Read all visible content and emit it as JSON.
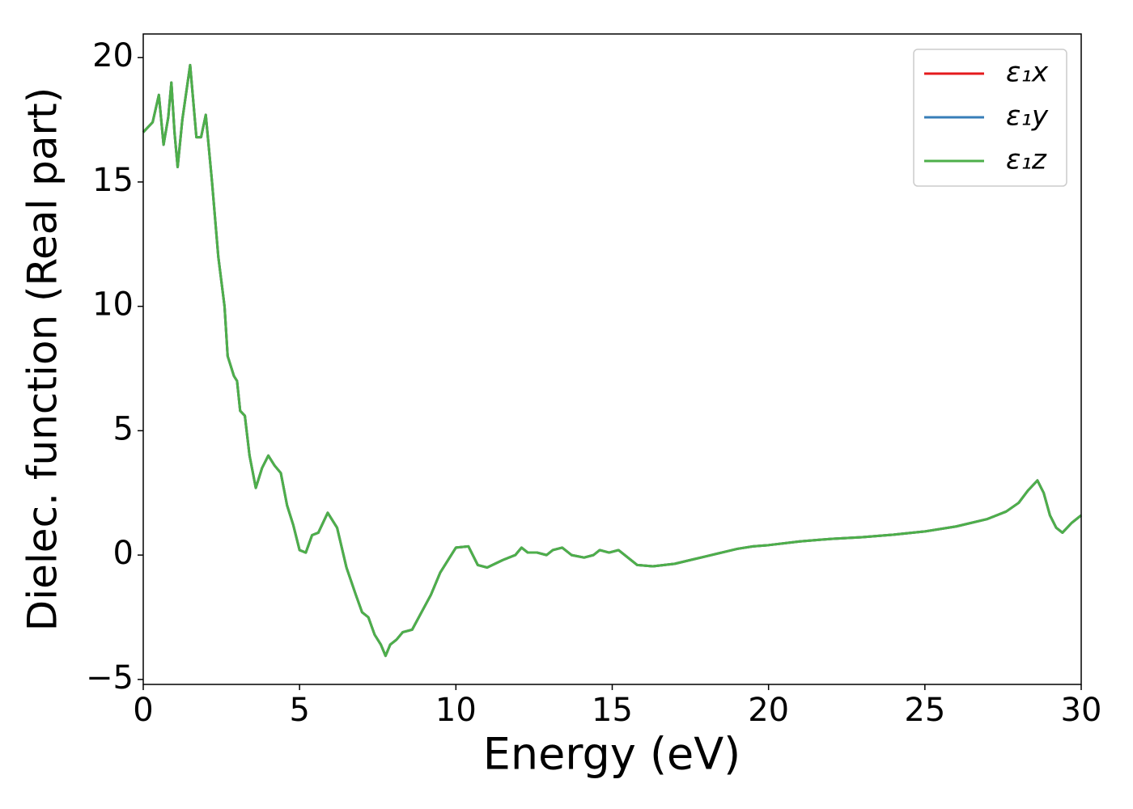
{
  "chart_data": {
    "type": "line",
    "xlabel": "Energy (eV)",
    "ylabel": "Dielec. function (Real part)",
    "x": [
      0,
      0.3,
      0.5,
      0.65,
      0.8,
      0.9,
      1.0,
      1.1,
      1.25,
      1.5,
      1.7,
      1.85,
      2.0,
      2.2,
      2.4,
      2.6,
      2.7,
      2.9,
      3.0,
      3.1,
      3.25,
      3.4,
      3.6,
      3.8,
      4.0,
      4.2,
      4.4,
      4.6,
      4.8,
      5.0,
      5.2,
      5.4,
      5.6,
      5.9,
      6.2,
      6.5,
      6.8,
      7.0,
      7.2,
      7.4,
      7.6,
      7.75,
      7.9,
      8.1,
      8.3,
      8.6,
      8.9,
      9.2,
      9.5,
      9.8,
      10.0,
      10.4,
      10.7,
      11.0,
      11.5,
      11.9,
      12.1,
      12.3,
      12.6,
      12.9,
      13.1,
      13.4,
      13.7,
      14.1,
      14.4,
      14.6,
      14.9,
      15.2,
      15.5,
      15.8,
      16.3,
      17.0,
      17.5,
      18.0,
      18.5,
      19.0,
      19.5,
      20.0,
      21.0,
      22.0,
      23.0,
      24.0,
      25.0,
      26.0,
      27.0,
      27.6,
      28.0,
      28.3,
      28.6,
      28.8,
      29.0,
      29.2,
      29.4,
      29.7,
      30.0
    ],
    "series": [
      {
        "name": "ε₁x",
        "color": "#e41a1c",
        "values": [
          17.0,
          17.4,
          18.5,
          16.5,
          17.6,
          19.0,
          17.0,
          15.6,
          17.5,
          19.7,
          16.8,
          16.8,
          17.7,
          15.0,
          12.0,
          10.0,
          8.0,
          7.2,
          7.0,
          5.8,
          5.6,
          4.0,
          2.7,
          3.5,
          4.0,
          3.6,
          3.3,
          2.0,
          1.2,
          0.2,
          0.1,
          0.8,
          0.9,
          1.7,
          1.1,
          -0.5,
          -1.6,
          -2.3,
          -2.5,
          -3.2,
          -3.6,
          -4.05,
          -3.6,
          -3.4,
          -3.1,
          -3.0,
          -2.3,
          -1.6,
          -0.7,
          -0.1,
          0.3,
          0.35,
          -0.4,
          -0.5,
          -0.2,
          0.0,
          0.3,
          0.1,
          0.1,
          0.0,
          0.2,
          0.3,
          0.0,
          -0.1,
          0.0,
          0.2,
          0.1,
          0.2,
          -0.1,
          -0.4,
          -0.45,
          -0.35,
          -0.2,
          -0.05,
          0.1,
          0.25,
          0.35,
          0.4,
          0.55,
          0.65,
          0.72,
          0.82,
          0.95,
          1.15,
          1.45,
          1.75,
          2.1,
          2.6,
          3.0,
          2.5,
          1.6,
          1.1,
          0.9,
          1.3,
          1.6
        ]
      },
      {
        "name": "ε₁y",
        "color": "#377eb8",
        "values": [
          17.0,
          17.4,
          18.5,
          16.5,
          17.6,
          19.0,
          17.0,
          15.6,
          17.5,
          19.7,
          16.8,
          16.8,
          17.7,
          15.0,
          12.0,
          10.0,
          8.0,
          7.2,
          7.0,
          5.8,
          5.6,
          4.0,
          2.7,
          3.5,
          4.0,
          3.6,
          3.3,
          2.0,
          1.2,
          0.2,
          0.1,
          0.8,
          0.9,
          1.7,
          1.1,
          -0.5,
          -1.6,
          -2.3,
          -2.5,
          -3.2,
          -3.6,
          -4.05,
          -3.6,
          -3.4,
          -3.1,
          -3.0,
          -2.3,
          -1.6,
          -0.7,
          -0.1,
          0.3,
          0.35,
          -0.4,
          -0.5,
          -0.2,
          0.0,
          0.3,
          0.1,
          0.1,
          0.0,
          0.2,
          0.3,
          0.0,
          -0.1,
          0.0,
          0.2,
          0.1,
          0.2,
          -0.1,
          -0.4,
          -0.45,
          -0.35,
          -0.2,
          -0.05,
          0.1,
          0.25,
          0.35,
          0.4,
          0.55,
          0.65,
          0.72,
          0.82,
          0.95,
          1.15,
          1.45,
          1.75,
          2.1,
          2.6,
          3.0,
          2.5,
          1.6,
          1.1,
          0.9,
          1.3,
          1.6
        ]
      },
      {
        "name": "ε₁z",
        "color": "#4daf4a",
        "values": [
          17.0,
          17.4,
          18.5,
          16.5,
          17.6,
          19.0,
          17.0,
          15.6,
          17.5,
          19.7,
          16.8,
          16.8,
          17.7,
          15.0,
          12.0,
          10.0,
          8.0,
          7.2,
          7.0,
          5.8,
          5.6,
          4.0,
          2.7,
          3.5,
          4.0,
          3.6,
          3.3,
          2.0,
          1.2,
          0.2,
          0.1,
          0.8,
          0.9,
          1.7,
          1.1,
          -0.5,
          -1.6,
          -2.3,
          -2.5,
          -3.2,
          -3.6,
          -4.05,
          -3.6,
          -3.4,
          -3.1,
          -3.0,
          -2.3,
          -1.6,
          -0.7,
          -0.1,
          0.3,
          0.35,
          -0.4,
          -0.5,
          -0.2,
          0.0,
          0.3,
          0.1,
          0.1,
          0.0,
          0.2,
          0.3,
          0.0,
          -0.1,
          0.0,
          0.2,
          0.1,
          0.2,
          -0.1,
          -0.4,
          -0.45,
          -0.35,
          -0.2,
          -0.05,
          0.1,
          0.25,
          0.35,
          0.4,
          0.55,
          0.65,
          0.72,
          0.82,
          0.95,
          1.15,
          1.45,
          1.75,
          2.1,
          2.6,
          3.0,
          2.5,
          1.6,
          1.1,
          0.9,
          1.3,
          1.6
        ]
      }
    ],
    "xlim": [
      0,
      30
    ],
    "xticks": [
      0,
      5,
      10,
      15,
      20,
      25,
      30
    ],
    "ylim": [
      -5.2,
      20.95
    ],
    "yticks": [
      {
        "value": -5,
        "label": "−5"
      },
      0,
      5,
      10,
      15,
      20
    ],
    "grid": false,
    "legend": "upper right"
  }
}
